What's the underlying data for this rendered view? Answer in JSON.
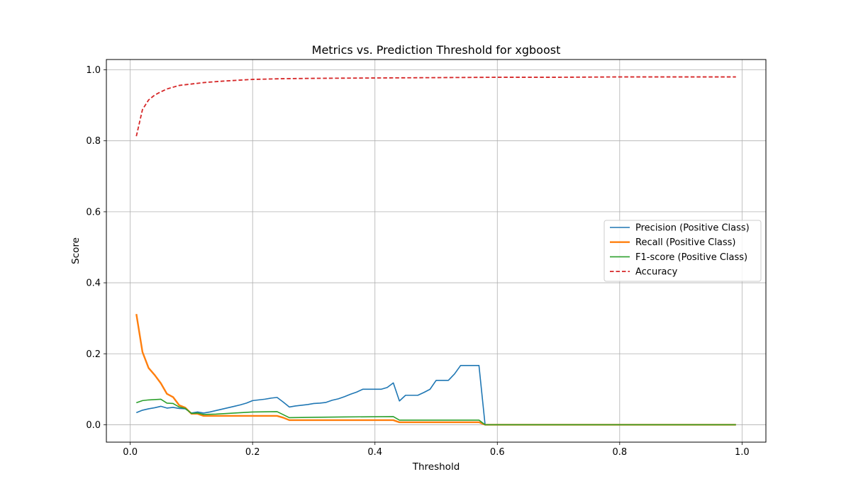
{
  "chart_data": {
    "type": "line",
    "title": "Metrics vs. Prediction Threshold for xgboost",
    "xlabel": "Threshold",
    "ylabel": "Score",
    "xlim": [
      -0.039,
      1.039
    ],
    "ylim": [
      -0.049,
      1.029
    ],
    "xticks": [
      0.0,
      0.2,
      0.4,
      0.6,
      0.8,
      1.0
    ],
    "xtick_labels": [
      "0.0",
      "0.2",
      "0.4",
      "0.6",
      "0.8",
      "1.0"
    ],
    "yticks": [
      0.0,
      0.2,
      0.4,
      0.6,
      0.8,
      1.0
    ],
    "ytick_labels": [
      "0.0",
      "0.2",
      "0.4",
      "0.6",
      "0.8",
      "1.0"
    ],
    "grid": true,
    "legend_position": "center-right",
    "series": [
      {
        "name": "Precision (Positive Class)",
        "color": "#1f77b4",
        "style": "solid",
        "points": [
          [
            0.01,
            0.034
          ],
          [
            0.02,
            0.041
          ],
          [
            0.03,
            0.045
          ],
          [
            0.04,
            0.048
          ],
          [
            0.05,
            0.052
          ],
          [
            0.06,
            0.047
          ],
          [
            0.07,
            0.049
          ],
          [
            0.08,
            0.046
          ],
          [
            0.09,
            0.045
          ],
          [
            0.1,
            0.033
          ],
          [
            0.11,
            0.036
          ],
          [
            0.12,
            0.033
          ],
          [
            0.13,
            0.036
          ],
          [
            0.14,
            0.04
          ],
          [
            0.15,
            0.044
          ],
          [
            0.16,
            0.048
          ],
          [
            0.17,
            0.052
          ],
          [
            0.18,
            0.056
          ],
          [
            0.19,
            0.061
          ],
          [
            0.2,
            0.068
          ],
          [
            0.21,
            0.07
          ],
          [
            0.22,
            0.072
          ],
          [
            0.23,
            0.075
          ],
          [
            0.24,
            0.077
          ],
          [
            0.25,
            0.064
          ],
          [
            0.26,
            0.05
          ],
          [
            0.27,
            0.053
          ],
          [
            0.28,
            0.055
          ],
          [
            0.29,
            0.057
          ],
          [
            0.3,
            0.06
          ],
          [
            0.31,
            0.061
          ],
          [
            0.32,
            0.063
          ],
          [
            0.33,
            0.069
          ],
          [
            0.34,
            0.073
          ],
          [
            0.35,
            0.079
          ],
          [
            0.36,
            0.086
          ],
          [
            0.37,
            0.092
          ],
          [
            0.38,
            0.1
          ],
          [
            0.39,
            0.1
          ],
          [
            0.4,
            0.1
          ],
          [
            0.41,
            0.1
          ],
          [
            0.42,
            0.105
          ],
          [
            0.43,
            0.118
          ],
          [
            0.44,
            0.067
          ],
          [
            0.45,
            0.083
          ],
          [
            0.46,
            0.083
          ],
          [
            0.47,
            0.083
          ],
          [
            0.48,
            0.091
          ],
          [
            0.49,
            0.1
          ],
          [
            0.5,
            0.125
          ],
          [
            0.51,
            0.125
          ],
          [
            0.52,
            0.125
          ],
          [
            0.53,
            0.143
          ],
          [
            0.54,
            0.167
          ],
          [
            0.55,
            0.167
          ],
          [
            0.56,
            0.167
          ],
          [
            0.57,
            0.167
          ],
          [
            0.58,
            0.0
          ],
          [
            0.99,
            0.0
          ]
        ]
      },
      {
        "name": "Recall (Positive Class)",
        "color": "#ff7f0e",
        "style": "solid",
        "points": [
          [
            0.01,
            0.312
          ],
          [
            0.02,
            0.205
          ],
          [
            0.03,
            0.16
          ],
          [
            0.04,
            0.14
          ],
          [
            0.05,
            0.117
          ],
          [
            0.06,
            0.087
          ],
          [
            0.07,
            0.078
          ],
          [
            0.08,
            0.055
          ],
          [
            0.09,
            0.048
          ],
          [
            0.1,
            0.031
          ],
          [
            0.11,
            0.031
          ],
          [
            0.12,
            0.025
          ],
          [
            0.24,
            0.025
          ],
          [
            0.25,
            0.02
          ],
          [
            0.26,
            0.013
          ],
          [
            0.43,
            0.013
          ],
          [
            0.44,
            0.007
          ],
          [
            0.57,
            0.007
          ],
          [
            0.58,
            0.0
          ],
          [
            0.99,
            0.0
          ]
        ]
      },
      {
        "name": "F1-score (Positive Class)",
        "color": "#2ca02c",
        "style": "solid",
        "points": [
          [
            0.01,
            0.062
          ],
          [
            0.02,
            0.068
          ],
          [
            0.03,
            0.07
          ],
          [
            0.04,
            0.071
          ],
          [
            0.05,
            0.072
          ],
          [
            0.06,
            0.061
          ],
          [
            0.07,
            0.06
          ],
          [
            0.08,
            0.05
          ],
          [
            0.09,
            0.046
          ],
          [
            0.1,
            0.032
          ],
          [
            0.11,
            0.033
          ],
          [
            0.12,
            0.029
          ],
          [
            0.14,
            0.03
          ],
          [
            0.2,
            0.036
          ],
          [
            0.24,
            0.037
          ],
          [
            0.26,
            0.02
          ],
          [
            0.3,
            0.021
          ],
          [
            0.35,
            0.022
          ],
          [
            0.43,
            0.023
          ],
          [
            0.44,
            0.013
          ],
          [
            0.57,
            0.013
          ],
          [
            0.58,
            0.0
          ],
          [
            0.99,
            0.0
          ]
        ]
      },
      {
        "name": "Accuracy",
        "color": "#d62728",
        "style": "dashed",
        "points": [
          [
            0.01,
            0.813
          ],
          [
            0.02,
            0.888
          ],
          [
            0.03,
            0.915
          ],
          [
            0.04,
            0.929
          ],
          [
            0.05,
            0.938
          ],
          [
            0.06,
            0.946
          ],
          [
            0.07,
            0.951
          ],
          [
            0.08,
            0.956
          ],
          [
            0.1,
            0.96
          ],
          [
            0.12,
            0.964
          ],
          [
            0.15,
            0.968
          ],
          [
            0.18,
            0.971
          ],
          [
            0.2,
            0.973
          ],
          [
            0.25,
            0.975
          ],
          [
            0.3,
            0.976
          ],
          [
            0.4,
            0.977
          ],
          [
            0.5,
            0.978
          ],
          [
            0.6,
            0.979
          ],
          [
            0.7,
            0.979
          ],
          [
            0.8,
            0.98
          ],
          [
            0.99,
            0.98
          ]
        ]
      }
    ]
  }
}
